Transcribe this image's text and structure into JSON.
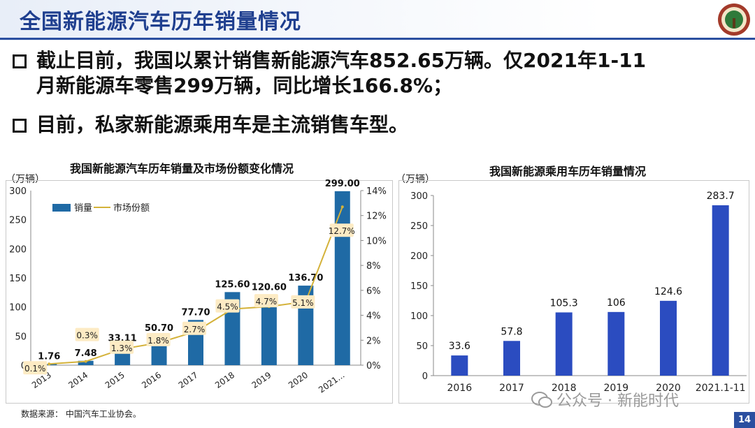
{
  "title": "全国新能源汽车历年销量情况",
  "bullets": [
    {
      "line1": "截止目前，我国以累计销售新能源汽车852.65万辆。仅2021年1-11",
      "line2": "月新能源车零售299万辆，同比增长166.8%；"
    },
    {
      "line1": "目前，私家新能源乘用车是主流销售车型。"
    }
  ],
  "source": "数据来源：  中国汽车工业协会。",
  "watermark": "公众号 · 新能时代",
  "page_number": "14",
  "colors": {
    "bar_left": "#1f6aa5",
    "bar_right": "#2b4cc0",
    "line": "#d4b23a",
    "title": "#1f3f8f",
    "share_label_bg": "#fdebc4"
  },
  "chart_data": [
    {
      "type": "bar",
      "title": "我国新能源汽车历年销量及市场份额变化情况",
      "unit": "（万辆）",
      "categories": [
        "2013",
        "2014",
        "2015",
        "2016",
        "2017",
        "2018",
        "2019",
        "2020",
        "2021..."
      ],
      "series": [
        {
          "name": "销量",
          "type": "bar",
          "axis": "left",
          "values": [
            1.76,
            7.48,
            33.11,
            50.7,
            77.7,
            125.6,
            120.6,
            136.7,
            299.0
          ],
          "labels": [
            "1.76",
            "7.48",
            "33.11",
            "50.70",
            "77.70",
            "125.60",
            "120.60",
            "136.70",
            "299.00"
          ]
        },
        {
          "name": "市场份额",
          "type": "line",
          "axis": "right",
          "values": [
            0.1,
            0.3,
            1.3,
            1.8,
            2.7,
            4.5,
            4.7,
            5.1,
            12.7
          ],
          "labels": [
            "0.1%",
            "0.3%",
            "1.3%",
            "1.8%",
            "2.7%",
            "4.5%",
            "4.7%",
            "5.1%",
            "12.7%"
          ]
        }
      ],
      "ylim": [
        0,
        300
      ],
      "yticks": [
        "0",
        "50",
        "100",
        "150",
        "200",
        "250",
        "300"
      ],
      "y2lim": [
        0,
        14
      ],
      "y2ticks": [
        "0%",
        "2%",
        "4%",
        "6%",
        "8%",
        "10%",
        "12%",
        "14%"
      ],
      "legend": "top-left",
      "grid": false
    },
    {
      "type": "bar",
      "title": "我国新能源乘用车历年销量情况",
      "unit": "（万辆）",
      "categories": [
        "2016",
        "2017",
        "2018",
        "2019",
        "2020",
        "2021.1-11"
      ],
      "values": [
        33.6,
        57.8,
        105.3,
        106,
        124.6,
        283.7
      ],
      "labels": [
        "33.6",
        "57.8",
        "105.3",
        "106",
        "124.6",
        "283.7"
      ],
      "ylim": [
        0,
        300
      ],
      "yticks": [
        "0",
        "50",
        "100",
        "150",
        "200",
        "250",
        "300"
      ],
      "grid": false
    }
  ]
}
